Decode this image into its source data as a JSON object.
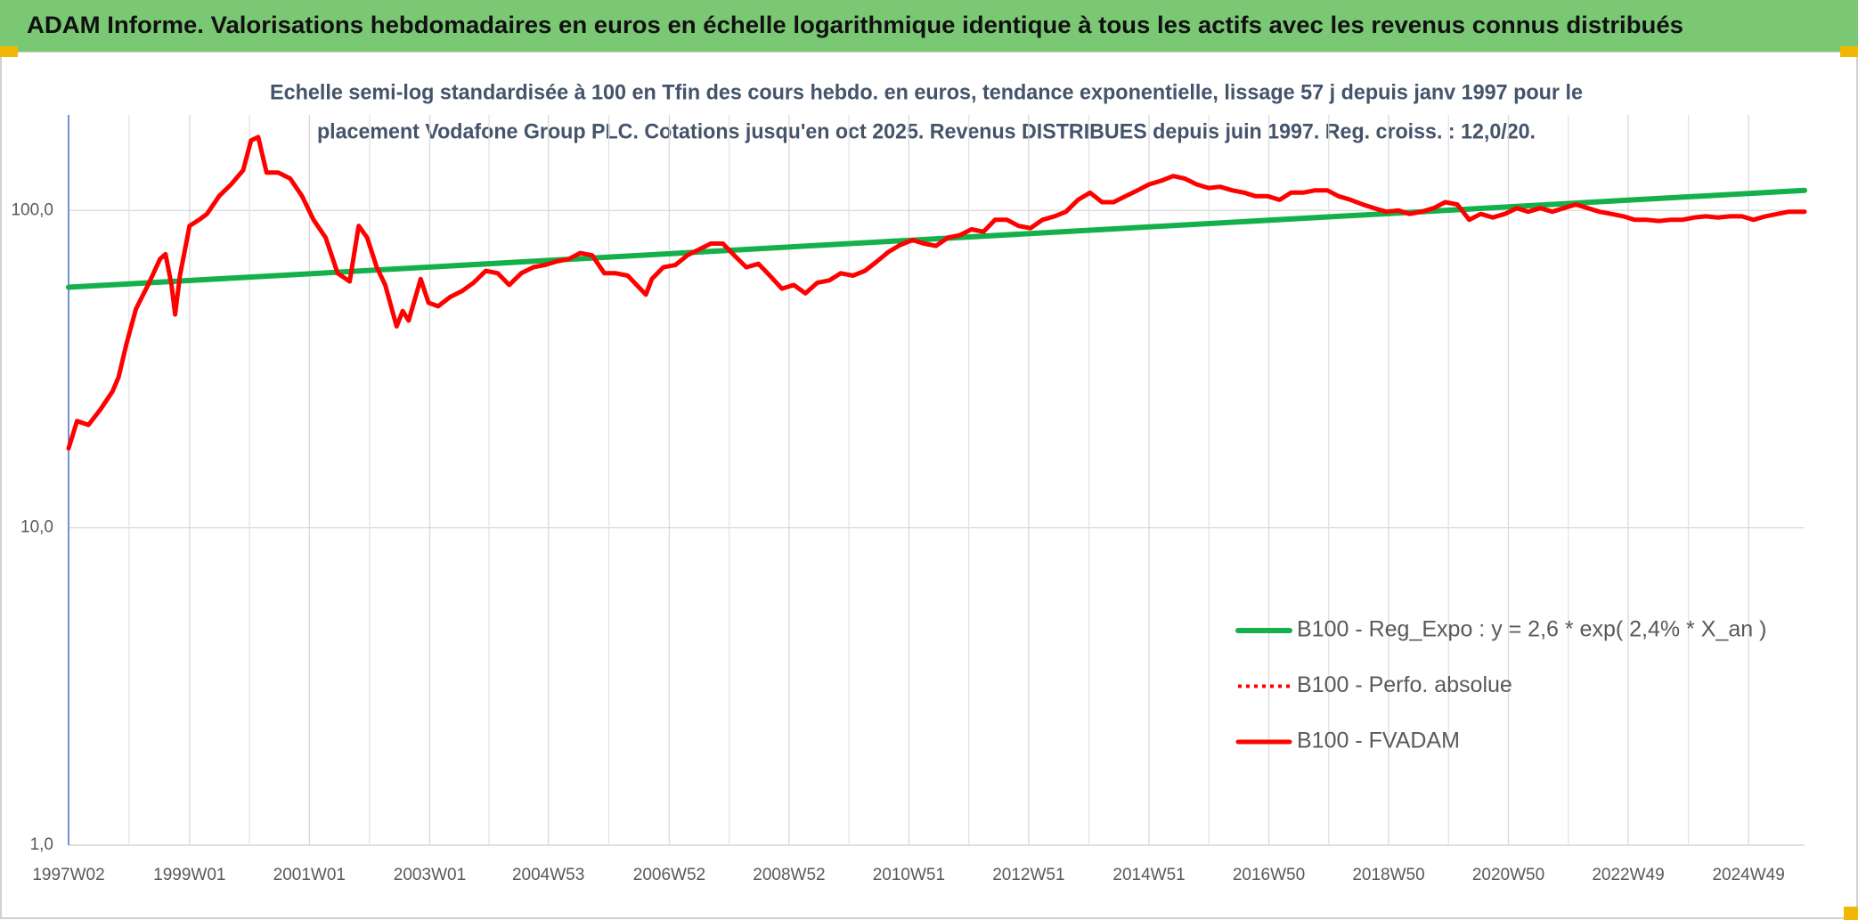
{
  "chart_data": {
    "type": "line",
    "title": "ADAM Informe. Valorisations hebdomadaires en euros en échelle logarithmique identique à tous les actifs avec les revenus connus distribués",
    "subtitle": [
      "Echelle semi-log standardisée à 100 en Tfin des cours hebdo. en euros, tendance exponentielle, lissage 57 j depuis janv 1997 pour le",
      "placement Vodafone Group PLC. Cotations jusqu'en oct 2025. Revenus DISTRIBUES depuis juin 1997. Reg. croiss. : 12,0/20."
    ],
    "ylog": true,
    "ylim": [
      1,
      200
    ],
    "yticks": [
      {
        "value": 1,
        "label": "1,0"
      },
      {
        "value": 10,
        "label": "10,0"
      },
      {
        "value": 100,
        "label": "100,0"
      }
    ],
    "xlim": [
      1997.0,
      2025.84
    ],
    "xticks": [
      {
        "value": 1997.0,
        "label": "1997W02"
      },
      {
        "value": 1999.01,
        "label": "1999W01"
      },
      {
        "value": 2001.0,
        "label": "2001W01"
      },
      {
        "value": 2003.0,
        "label": "2003W01"
      },
      {
        "value": 2004.97,
        "label": "2004W53"
      },
      {
        "value": 2006.98,
        "label": "2006W52"
      },
      {
        "value": 2008.97,
        "label": "2008W52"
      },
      {
        "value": 2010.96,
        "label": "2010W51"
      },
      {
        "value": 2012.95,
        "label": "2012W51"
      },
      {
        "value": 2014.95,
        "label": "2014W51"
      },
      {
        "value": 2016.94,
        "label": "2016W50"
      },
      {
        "value": 2018.93,
        "label": "2018W50"
      },
      {
        "value": 2020.92,
        "label": "2020W50"
      },
      {
        "value": 2022.91,
        "label": "2022W49"
      },
      {
        "value": 2024.91,
        "label": "2024W49"
      }
    ],
    "grid": true,
    "legend": "lower-right",
    "series": [
      {
        "name": "B100 - Reg_Expo : y = 2,6 * exp( 2,4% *  X_an )",
        "color": "#13b04b",
        "width": 6,
        "x": [
          1997.0,
          2025.84
        ],
        "values": [
          57.3,
          115.7
        ]
      },
      {
        "name": "B100 - Perfo. absolue",
        "color": "#ff0000",
        "dash": "dotted",
        "width": 4
      },
      {
        "name": "B100 - FVADAM",
        "color": "#ff0000",
        "width": 5,
        "x": [
          1997.0,
          1997.14,
          1997.33,
          1997.53,
          1997.73,
          1997.83,
          1997.96,
          1998.12,
          1998.32,
          1998.52,
          1998.61,
          1998.71,
          1998.77,
          1998.85,
          1999.01,
          1999.17,
          1999.3,
          1999.5,
          1999.7,
          1999.9,
          2000.03,
          2000.15,
          2000.29,
          2000.48,
          2000.68,
          2000.88,
          2001.07,
          2001.27,
          2001.47,
          2001.67,
          2001.82,
          2001.96,
          2002.12,
          2002.26,
          2002.45,
          2002.55,
          2002.65,
          2002.85,
          2002.98,
          2003.14,
          2003.34,
          2003.54,
          2003.73,
          2003.93,
          2004.13,
          2004.32,
          2004.52,
          2004.72,
          2004.91,
          2005.11,
          2005.31,
          2005.5,
          2005.7,
          2005.9,
          2006.09,
          2006.29,
          2006.59,
          2006.69,
          2006.88,
          2007.08,
          2007.28,
          2007.47,
          2007.67,
          2007.87,
          2008.06,
          2008.26,
          2008.46,
          2008.65,
          2008.85,
          2009.05,
          2009.24,
          2009.44,
          2009.64,
          2009.83,
          2010.03,
          2010.23,
          2010.43,
          2010.62,
          2010.82,
          2011.02,
          2011.21,
          2011.41,
          2011.61,
          2011.8,
          2012.0,
          2012.2,
          2012.39,
          2012.59,
          2012.78,
          2012.98,
          2013.18,
          2013.38,
          2013.57,
          2013.77,
          2013.97,
          2014.17,
          2014.36,
          2014.56,
          2014.76,
          2014.95,
          2015.15,
          2015.35,
          2015.54,
          2015.74,
          2015.94,
          2016.13,
          2016.33,
          2016.53,
          2016.72,
          2016.92,
          2017.12,
          2017.31,
          2017.51,
          2017.71,
          2017.91,
          2018.1,
          2018.3,
          2018.5,
          2018.69,
          2018.89,
          2019.09,
          2019.28,
          2019.48,
          2019.68,
          2019.87,
          2020.07,
          2020.27,
          2020.46,
          2020.66,
          2020.86,
          2021.06,
          2021.25,
          2021.45,
          2021.65,
          2021.84,
          2022.04,
          2022.24,
          2022.43,
          2022.63,
          2022.83,
          2023.02,
          2023.22,
          2023.42,
          2023.61,
          2023.81,
          2024.01,
          2024.2,
          2024.4,
          2024.6,
          2024.8,
          2024.99,
          2025.19,
          2025.39,
          2025.58,
          2025.84
        ],
        "values": [
          17.8,
          21.7,
          21.1,
          23.6,
          26.9,
          29.8,
          37.9,
          49.0,
          58.2,
          70.3,
          72.8,
          58.2,
          47.0,
          62.3,
          89.4,
          93.4,
          97.5,
          110.9,
          120.8,
          133.9,
          166.0,
          170.3,
          131.6,
          131.6,
          126.1,
          110.9,
          93.4,
          82.1,
          63.4,
          59.7,
          89.4,
          82.1,
          66.2,
          58.2,
          43.1,
          48.2,
          45.0,
          60.8,
          51.2,
          49.9,
          53.4,
          55.8,
          59.2,
          64.5,
          63.4,
          58.2,
          63.4,
          66.2,
          67.3,
          69.1,
          70.3,
          73.4,
          72.2,
          63.4,
          63.4,
          62.3,
          54.3,
          60.8,
          66.2,
          67.3,
          72.2,
          75.3,
          78.6,
          78.6,
          72.2,
          66.2,
          67.9,
          62.3,
          56.7,
          58.2,
          54.8,
          59.2,
          60.2,
          63.4,
          62.3,
          64.5,
          69.1,
          74.0,
          77.9,
          80.7,
          78.6,
          77.3,
          82.1,
          83.5,
          87.2,
          85.7,
          93.4,
          93.4,
          89.4,
          87.9,
          93.4,
          95.8,
          99.1,
          108.0,
          113.8,
          106.2,
          106.2,
          110.9,
          115.7,
          120.8,
          124.0,
          128.3,
          126.1,
          120.8,
          117.7,
          118.7,
          115.7,
          113.8,
          110.9,
          110.9,
          108.0,
          113.8,
          113.8,
          115.7,
          115.7,
          110.9,
          108.0,
          104.4,
          101.7,
          99.1,
          100,
          97.5,
          99.1,
          101.7,
          106.2,
          104.4,
          93.4,
          97.5,
          95.0,
          97.5,
          101.7,
          99.1,
          101.7,
          99.1,
          101.7,
          104.4,
          101.7,
          99.1,
          97.5,
          95.8,
          93.4,
          93.4,
          92.6,
          93.4,
          93.4,
          95.0,
          95.8,
          95.0,
          95.8,
          95.8,
          93.4,
          95.8,
          97.5,
          99.1,
          99.1
        ]
      }
    ]
  }
}
